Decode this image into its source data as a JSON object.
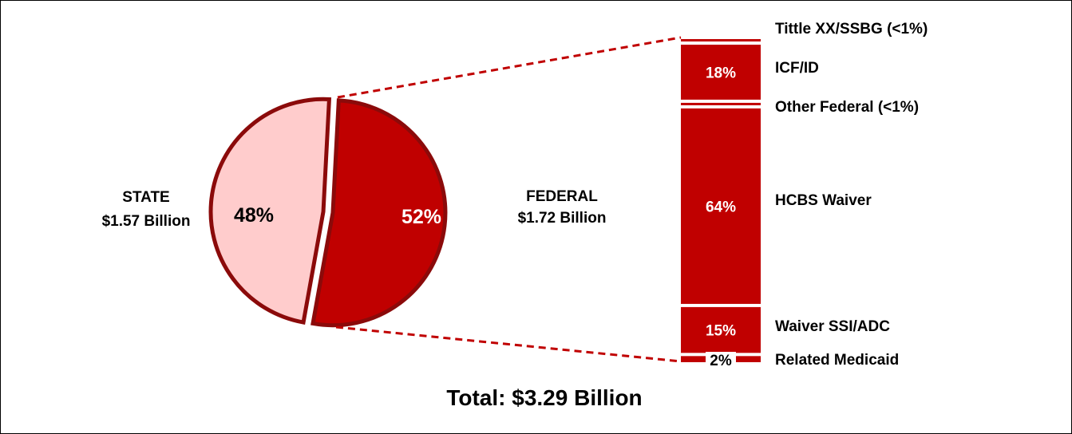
{
  "chart_data": {
    "type": "pie",
    "total_label": "Total: $3.29 Billion",
    "pie": {
      "slices": [
        {
          "name": "STATE",
          "amount": "$1.57 Billion",
          "value": 48,
          "label": "48%",
          "color": "#ffcccc"
        },
        {
          "name": "FEDERAL",
          "amount": "$1.72 Billion",
          "value": 52,
          "label": "52%",
          "color": "#c00000"
        }
      ],
      "outline_color": "#8b0a0a"
    },
    "federal_breakdown": {
      "type": "stacked_bar",
      "unit": "%",
      "color": "#c00000",
      "segments": [
        {
          "name": "Tittle XX/SSBG (<1%)",
          "value": 0.3,
          "label": ""
        },
        {
          "name": "ICF/ID",
          "value": 18,
          "label": "18%"
        },
        {
          "name": "Other Federal (<1%)",
          "value": 0.3,
          "label": ""
        },
        {
          "name": "HCBS Waiver",
          "value": 64,
          "label": "64%"
        },
        {
          "name": "Waiver SSI/ADC",
          "value": 15,
          "label": "15%"
        },
        {
          "name": "Related Medicaid",
          "value": 2,
          "label": "2%"
        }
      ]
    }
  }
}
